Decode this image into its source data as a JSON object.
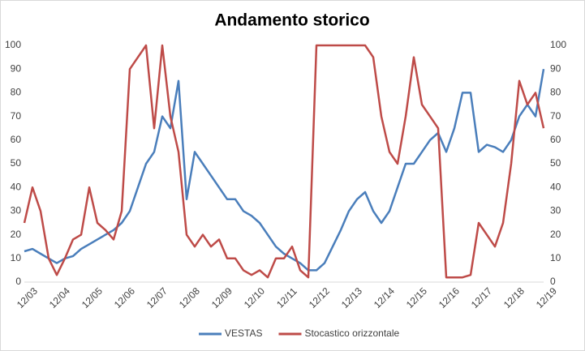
{
  "chart_data": {
    "type": "line",
    "title": "Andamento storico",
    "categories": [
      "12/03",
      null,
      null,
      null,
      "12/04",
      null,
      null,
      null,
      "12/05",
      null,
      null,
      null,
      "12/06",
      null,
      null,
      null,
      "12/07",
      null,
      null,
      null,
      "12/08",
      null,
      null,
      null,
      "12/09",
      null,
      null,
      null,
      "12/10",
      null,
      null,
      null,
      "12/11",
      null,
      null,
      null,
      "12/12",
      null,
      null,
      null,
      "12/13",
      null,
      null,
      null,
      "12/14",
      null,
      null,
      null,
      "12/15",
      null,
      null,
      null,
      "12/16",
      null,
      null,
      null,
      "12/17",
      null,
      null,
      null,
      "12/18",
      null,
      null,
      null,
      "12/19"
    ],
    "series": [
      {
        "name": "VESTAS",
        "color": "#4a7ebb",
        "values": [
          13,
          14,
          12,
          10,
          8,
          10,
          11,
          14,
          16,
          18,
          20,
          22,
          25,
          30,
          40,
          50,
          55,
          70,
          65,
          85,
          35,
          55,
          50,
          45,
          40,
          35,
          35,
          30,
          28,
          25,
          20,
          15,
          12,
          10,
          8,
          5,
          5,
          8,
          15,
          22,
          30,
          35,
          38,
          30,
          25,
          30,
          40,
          50,
          50,
          55,
          60,
          63,
          55,
          65,
          80,
          80,
          55,
          58,
          57,
          55,
          60,
          70,
          75,
          70,
          90
        ]
      },
      {
        "name": "Stocastico orizzontale",
        "color": "#be4b48",
        "axis": "y2",
        "values": [
          25,
          40,
          30,
          10,
          3,
          10,
          18,
          20,
          40,
          25,
          22,
          18,
          30,
          90,
          95,
          100,
          65,
          100,
          70,
          55,
          20,
          15,
          20,
          15,
          18,
          10,
          10,
          5,
          3,
          5,
          2,
          10,
          10,
          15,
          5,
          2,
          100,
          100,
          100,
          100,
          100,
          100,
          100,
          95,
          70,
          55,
          50,
          70,
          95,
          75,
          70,
          65,
          2,
          2,
          2,
          3,
          25,
          20,
          15,
          25,
          50,
          85,
          75,
          80,
          65
        ]
      }
    ],
    "ylim": [
      0,
      100
    ],
    "yticks": [
      0,
      10,
      20,
      30,
      40,
      50,
      60,
      70,
      80,
      90,
      100
    ],
    "y2lim": [
      0,
      100
    ],
    "y2ticks": [
      0,
      10,
      20,
      30,
      40,
      50,
      60,
      70,
      80,
      90,
      100
    ],
    "legend": "bottom"
  }
}
